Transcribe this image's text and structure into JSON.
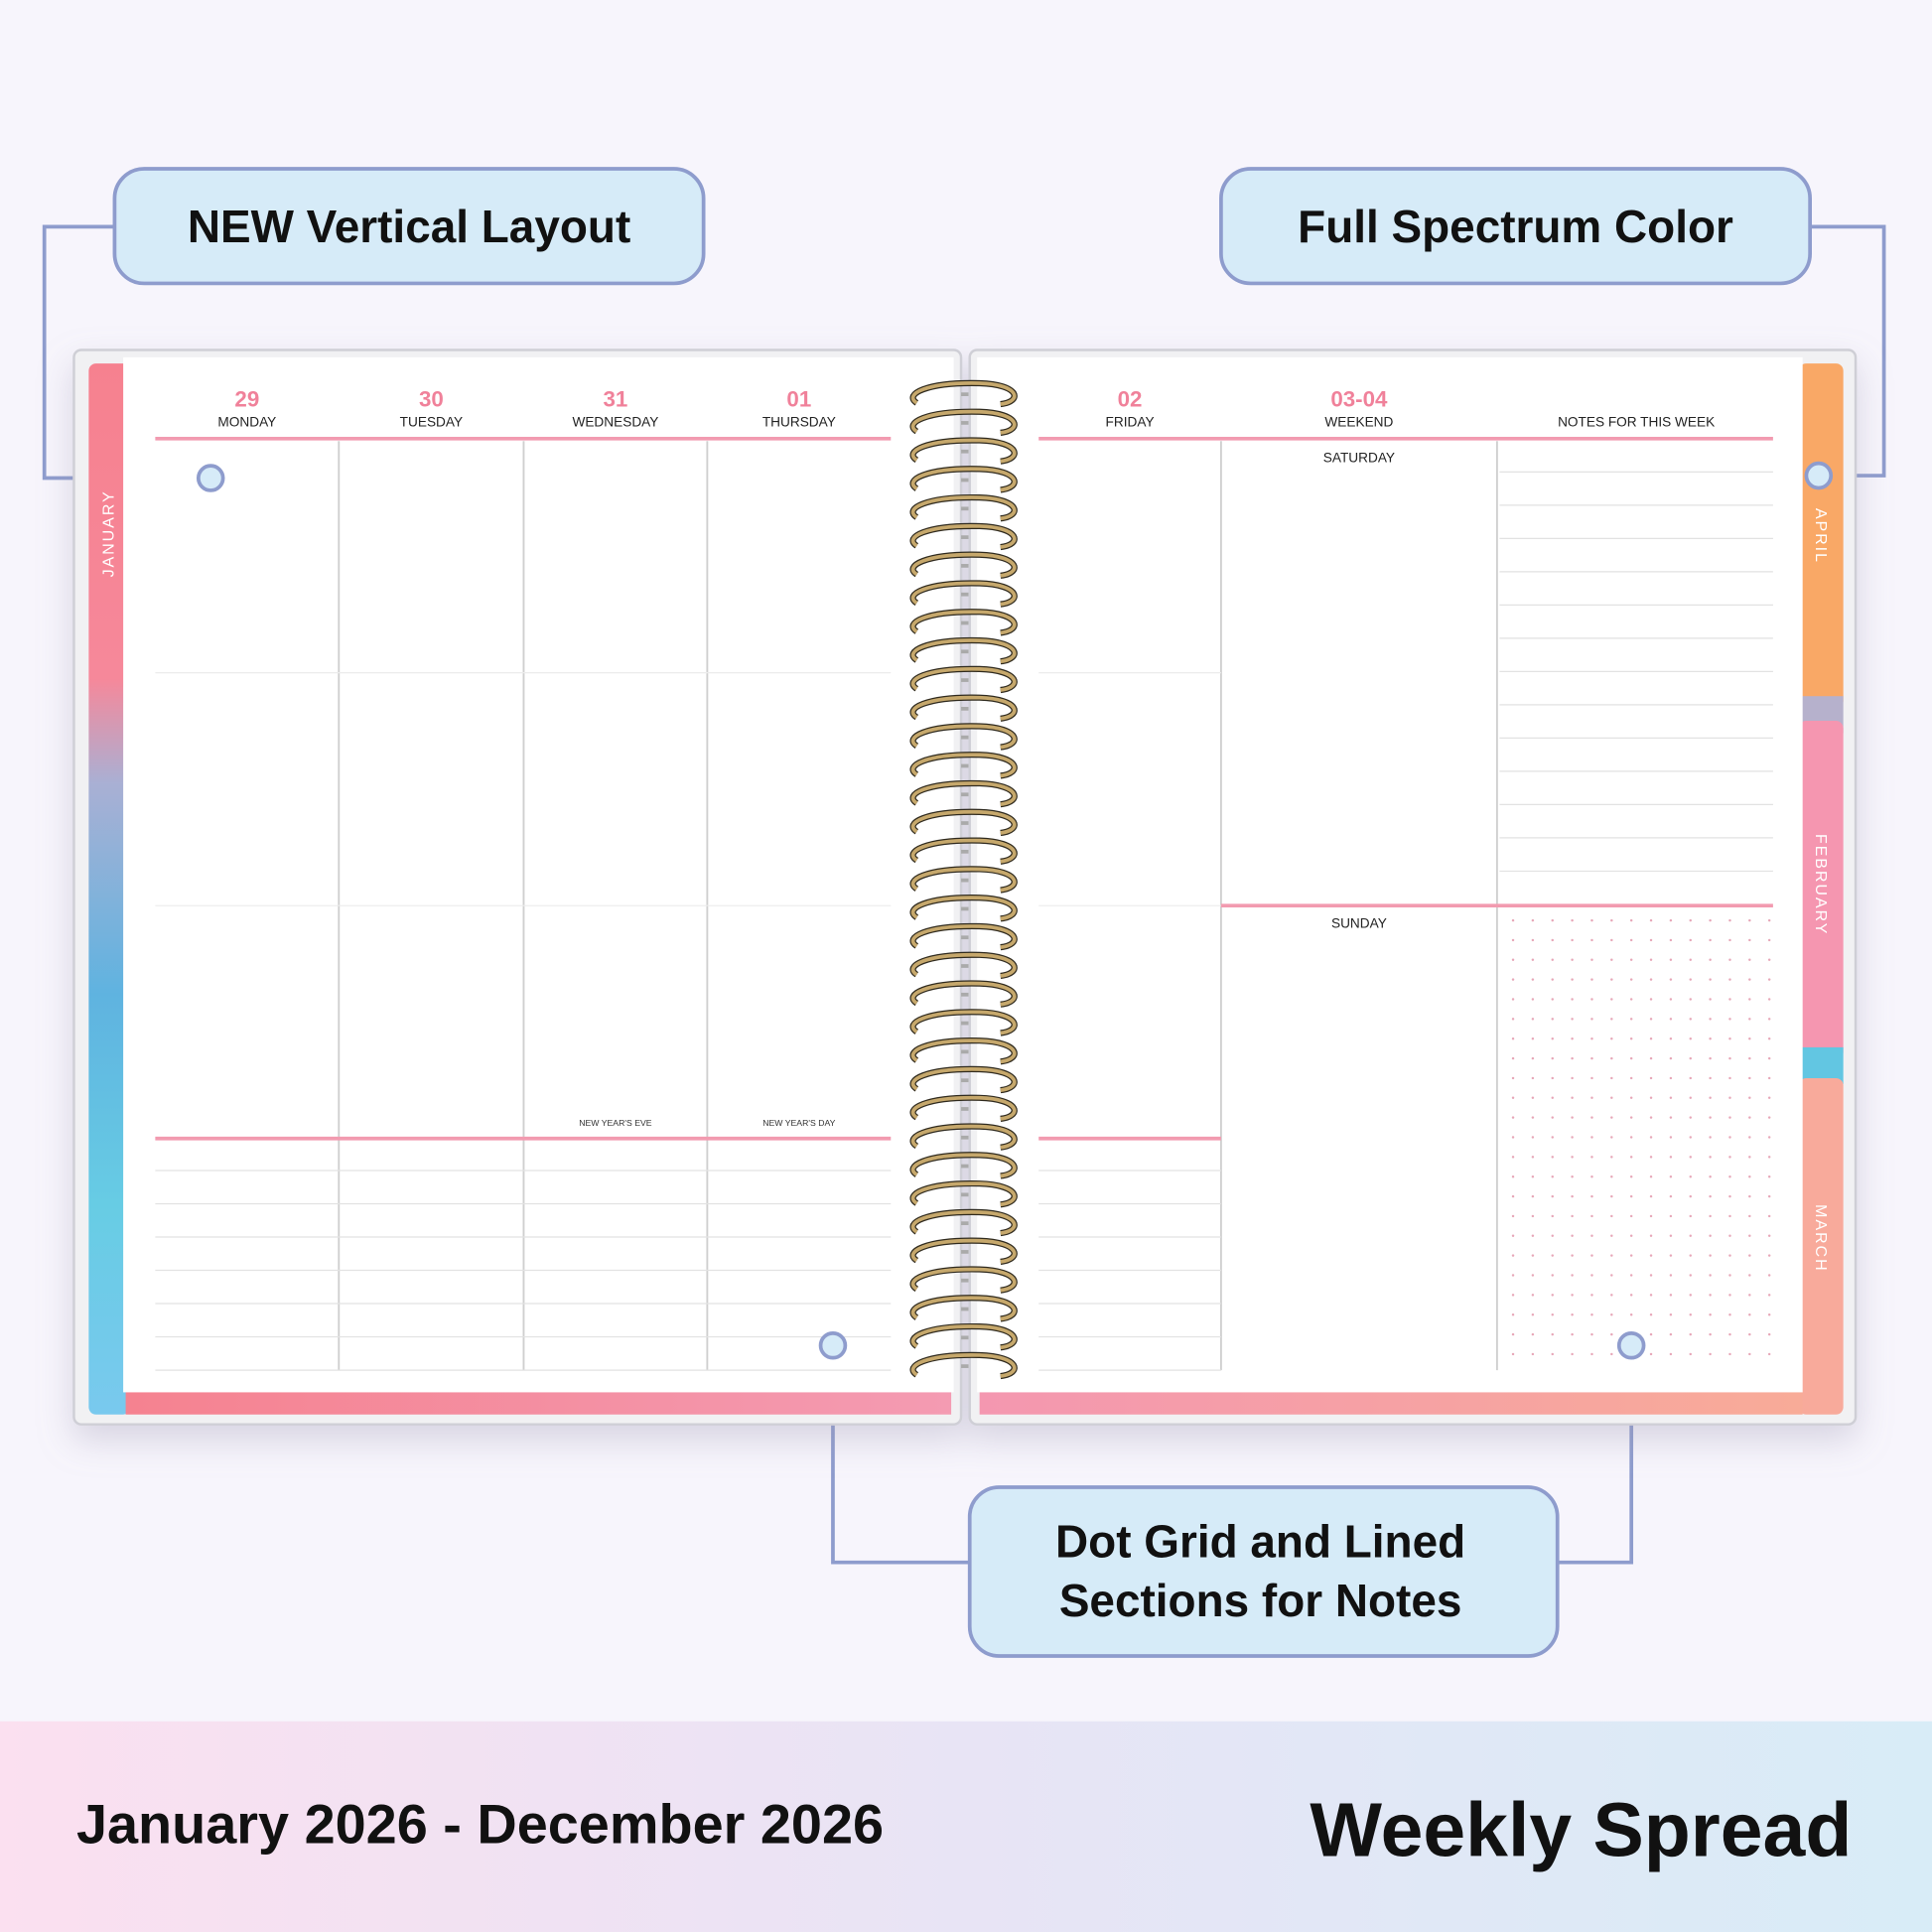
{
  "callouts": [
    {
      "lines": [
        "NEW Vertical Layout"
      ]
    },
    {
      "lines": [
        "Full Spectrum Color"
      ]
    },
    {
      "lines": [
        "Dot Grid and Lined",
        "Sections for Notes"
      ]
    }
  ],
  "left_page": {
    "days": [
      {
        "date": "29",
        "name": "MONDAY"
      },
      {
        "date": "30",
        "name": "TUESDAY"
      },
      {
        "date": "31",
        "name": "WEDNESDAY",
        "note": "NEW YEAR'S EVE"
      },
      {
        "date": "01",
        "name": "THURSDAY",
        "note": "NEW YEAR'S DAY"
      }
    ]
  },
  "right_page": {
    "days": [
      {
        "date": "02",
        "name": "FRIDAY"
      },
      {
        "date": "03-04",
        "name": "WEEKEND"
      }
    ],
    "weekend_days": [
      "SATURDAY",
      "SUNDAY"
    ],
    "notes_title": "NOTES FOR THIS WEEK"
  },
  "tabs": {
    "left": [
      "JANUARY"
    ],
    "right": [
      "APRIL",
      "FEBRUARY",
      "MARCH"
    ]
  },
  "footer": {
    "date_range": "January 2026 - December 2026",
    "title": "Weekly Spread"
  }
}
